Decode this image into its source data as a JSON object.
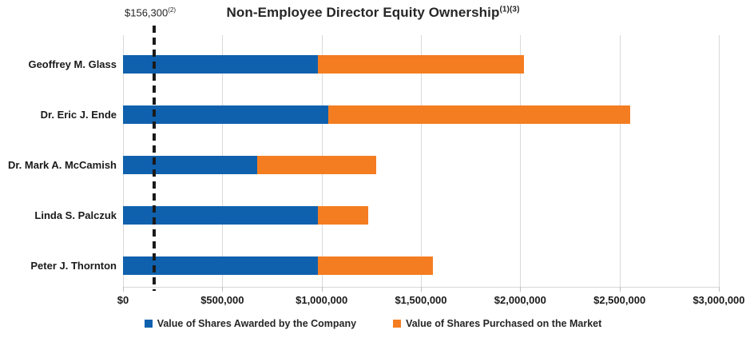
{
  "title": {
    "text": "Non-Employee Director Equity Ownership",
    "superscript": "(1)(3)"
  },
  "chart_data": {
    "type": "bar",
    "orientation": "horizontal",
    "stacked": true,
    "title": "Non-Employee Director Equity Ownership(1)(3)",
    "categories": [
      "Geoffrey M. Glass",
      "Dr. Eric J. Ende",
      "Dr. Mark A. McCamish",
      "Linda S. Palczuk",
      "Peter J. Thornton"
    ],
    "series": [
      {
        "name": "Value of Shares Awarded by the Company",
        "color": "#1061AD",
        "values": [
          980000,
          1035000,
          675000,
          980000,
          980000
        ]
      },
      {
        "name": "Value of Shares Purchased on the Market",
        "color": "#F47D21",
        "values": [
          1040000,
          1520000,
          600000,
          255000,
          580000
        ]
      }
    ],
    "totals": [
      2020000,
      2555000,
      1275000,
      1235000,
      1560000
    ],
    "xlim": [
      0,
      3000000
    ],
    "x_tick_labels": [
      "$0",
      "$500,000",
      "$1,000,000",
      "$1,500,000",
      "$2,000,000",
      "$2,500,000",
      "$3,000,000"
    ],
    "x_tick_values": [
      0,
      500000,
      1000000,
      1500000,
      2000000,
      2500000,
      3000000
    ],
    "grid": "vertical",
    "gridline_color": "#D9D9D9",
    "legend_position": "bottom",
    "reference_line": {
      "value": 156300,
      "label": "$156,300",
      "label_superscript": "(2)",
      "style": "dashed",
      "color": "#1A1A1A"
    }
  }
}
